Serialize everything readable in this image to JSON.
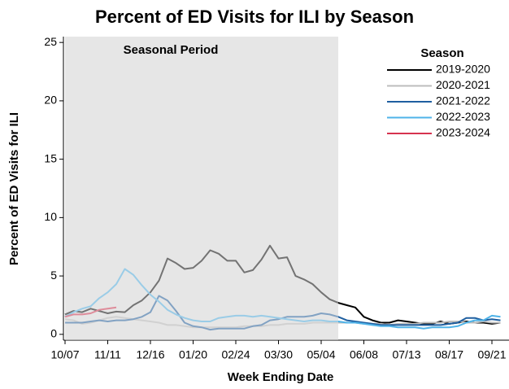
{
  "chart_data": {
    "type": "line",
    "title": "Percent of ED Visits for ILI by Season",
    "x_label": "Week Ending Date",
    "y_label": "Percent of ED Visits for ILI",
    "annotation": "Seasonal Period",
    "shade_range": [
      0,
      32
    ],
    "legend_title": "Season",
    "legend_position": "upper right",
    "grid": false,
    "categories": [
      "10/07",
      null,
      null,
      null,
      null,
      "11/11",
      null,
      null,
      null,
      null,
      "12/16",
      null,
      null,
      null,
      null,
      "01/20",
      null,
      null,
      null,
      null,
      "02/24",
      null,
      null,
      null,
      null,
      "03/30",
      null,
      null,
      null,
      null,
      "05/04",
      null,
      null,
      null,
      null,
      "06/08",
      null,
      null,
      null,
      null,
      "07/13",
      null,
      null,
      null,
      null,
      "08/17",
      null,
      null,
      null,
      null,
      "09/21",
      null
    ],
    "ylim": [
      -0.5,
      25.5
    ],
    "yticks": [
      0,
      5,
      10,
      15,
      20,
      25
    ],
    "series": [
      {
        "name": "2019-2020",
        "color": "#000000",
        "values": [
          1.7,
          2.0,
          1.9,
          2.2,
          2.0,
          1.8,
          1.95,
          1.9,
          2.5,
          2.9,
          3.6,
          4.6,
          6.5,
          6.1,
          5.6,
          5.7,
          6.3,
          7.2,
          6.9,
          6.3,
          6.3,
          5.3,
          5.5,
          6.4,
          7.6,
          6.5,
          6.6,
          5.0,
          4.7,
          4.3,
          3.6,
          3.0,
          2.7,
          2.5,
          2.3,
          1.5,
          1.2,
          1.0,
          1.0,
          1.2,
          1.1,
          1.0,
          0.9,
          0.9,
          1.1,
          0.9,
          1.0,
          1.1,
          1.0,
          1.0,
          0.9,
          1.0
        ]
      },
      {
        "name": "2020-2021",
        "color": "#bdbdbd",
        "values": [
          1.3,
          1.2,
          0.9,
          1.0,
          1.2,
          1.4,
          1.5,
          1.4,
          1.3,
          1.2,
          1.1,
          1.0,
          0.8,
          0.8,
          0.7,
          0.6,
          0.6,
          0.6,
          0.6,
          0.6,
          0.6,
          0.7,
          0.7,
          0.7,
          0.8,
          0.8,
          0.9,
          0.9,
          0.9,
          1.0,
          1.0,
          1.0,
          1.0,
          1.0,
          1.0,
          0.9,
          0.9,
          0.9,
          0.8,
          0.9,
          0.9,
          0.9,
          1.0,
          1.0,
          1.0,
          1.1,
          1.1,
          1.0,
          1.0,
          1.1,
          1.0,
          1.0
        ]
      },
      {
        "name": "2021-2022",
        "color": "#1f5fa0",
        "values": [
          1.0,
          1.0,
          1.0,
          1.1,
          1.2,
          1.1,
          1.2,
          1.2,
          1.3,
          1.5,
          1.9,
          3.3,
          2.9,
          2.0,
          1.0,
          0.7,
          0.6,
          0.4,
          0.5,
          0.5,
          0.5,
          0.5,
          0.7,
          0.8,
          1.2,
          1.3,
          1.5,
          1.5,
          1.5,
          1.6,
          1.8,
          1.7,
          1.5,
          1.2,
          1.1,
          1.0,
          0.9,
          0.8,
          0.8,
          0.8,
          0.8,
          0.8,
          0.8,
          0.8,
          0.8,
          0.9,
          1.0,
          1.4,
          1.4,
          1.2,
          1.3,
          1.2
        ]
      },
      {
        "name": "2022-2023",
        "color": "#4fb3e8",
        "values": [
          1.5,
          1.9,
          2.2,
          2.4,
          3.1,
          3.6,
          4.3,
          5.6,
          5.1,
          4.2,
          3.4,
          2.8,
          2.1,
          1.7,
          1.4,
          1.2,
          1.1,
          1.1,
          1.4,
          1.5,
          1.6,
          1.6,
          1.5,
          1.6,
          1.5,
          1.4,
          1.3,
          1.2,
          1.1,
          1.2,
          1.2,
          1.1,
          1.1,
          1.0,
          1.0,
          0.9,
          0.8,
          0.7,
          0.7,
          0.6,
          0.6,
          0.6,
          0.5,
          0.6,
          0.6,
          0.6,
          0.7,
          1.0,
          1.2,
          1.2,
          1.6,
          1.5
        ]
      },
      {
        "name": "2023-2024",
        "color": "#d6334f",
        "values": [
          1.5,
          1.7,
          1.7,
          1.8,
          2.1,
          2.2,
          2.3,
          null,
          null,
          null,
          null,
          null,
          null,
          null,
          null,
          null,
          null,
          null,
          null,
          null,
          null,
          null,
          null,
          null,
          null,
          null,
          null,
          null,
          null,
          null,
          null,
          null,
          null,
          null,
          null,
          null,
          null,
          null,
          null,
          null,
          null,
          null,
          null,
          null,
          null,
          null,
          null,
          null,
          null,
          null,
          null,
          null
        ]
      }
    ]
  }
}
